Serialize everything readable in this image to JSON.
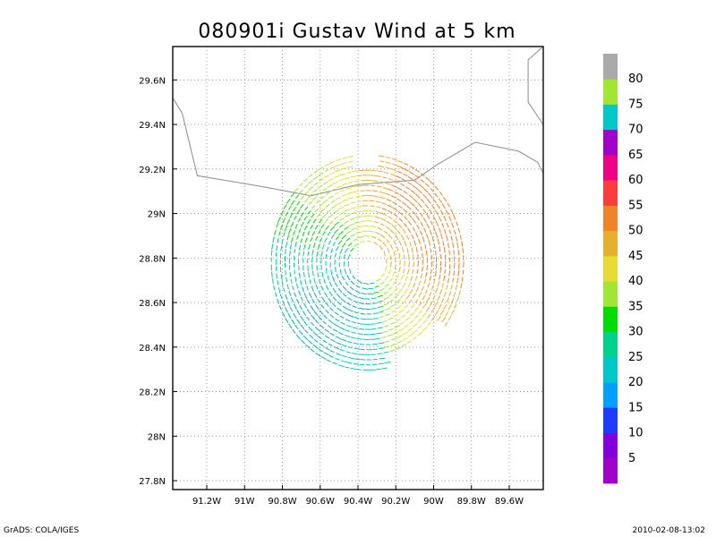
{
  "chart_data": {
    "type": "vector",
    "title": "080901i Gustav Wind at 5 km",
    "x_ticks": [
      "91.2W",
      "91W",
      "90.8W",
      "90.6W",
      "90.4W",
      "90.2W",
      "90W",
      "89.8W",
      "89.6W"
    ],
    "y_ticks": [
      "29.6N",
      "29.4N",
      "29.2N",
      "29N",
      "28.8N",
      "28.6N",
      "28.4N",
      "28.2N",
      "28N",
      "27.8N"
    ],
    "xlim": [
      -91.38,
      -89.42
    ],
    "ylim": [
      27.76,
      29.75
    ],
    "grid": true,
    "center": {
      "lon": -90.35,
      "lat": 28.78
    },
    "eye_radius_deg": 0.1,
    "max_radius_deg": 0.52,
    "colorbar": {
      "levels": [
        "5",
        "10",
        "15",
        "20",
        "25",
        "30",
        "35",
        "40",
        "45",
        "50",
        "55",
        "60",
        "65",
        "70",
        "75",
        "80"
      ],
      "colors": [
        "#a000c8",
        "#8200dc",
        "#1e3cff",
        "#00a0ff",
        "#00c8c8",
        "#00d28c",
        "#00dc00",
        "#a0e632",
        "#e6dc32",
        "#e6af2d",
        "#f08228",
        "#fa3c3c",
        "#f00082",
        "#a000c8",
        "#00c8c8",
        "#a0e632",
        "#aaaaaa"
      ]
    },
    "coastline_lonlat": [
      [
        [
          -91.38,
          29.52
        ],
        [
          -91.33,
          29.45
        ],
        [
          -91.25,
          29.17
        ],
        [
          -90.9,
          29.12
        ],
        [
          -90.65,
          29.08
        ],
        [
          -90.4,
          29.13
        ],
        [
          -90.1,
          29.15
        ],
        [
          -89.98,
          29.22
        ],
        [
          -89.78,
          29.32
        ],
        [
          -89.55,
          29.28
        ],
        [
          -89.45,
          29.23
        ],
        [
          -89.42,
          29.18
        ]
      ],
      [
        [
          -89.42,
          29.75
        ],
        [
          -89.5,
          29.69
        ],
        [
          -89.5,
          29.5
        ],
        [
          -89.42,
          29.4
        ]
      ]
    ]
  },
  "footer": {
    "left": "GrADS: COLA/IGES",
    "right": "2010-02-08-13:02"
  }
}
